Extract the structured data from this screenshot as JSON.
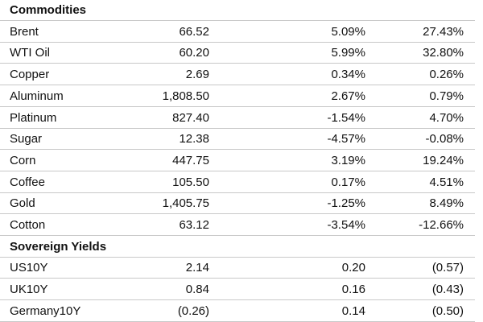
{
  "sections": [
    {
      "title": "Commodities",
      "rows": [
        [
          "Brent",
          "66.52",
          "5.09%",
          "27.43%"
        ],
        [
          "WTI Oil",
          "60.20",
          "5.99%",
          "32.80%"
        ],
        [
          "Copper",
          "2.69",
          "0.34%",
          "0.26%"
        ],
        [
          "Aluminum",
          "1,808.50",
          "2.67%",
          "0.79%"
        ],
        [
          "Platinum",
          "827.40",
          "-1.54%",
          "4.70%"
        ],
        [
          "Sugar",
          "12.38",
          "-4.57%",
          "-0.08%"
        ],
        [
          "Corn",
          "447.75",
          "3.19%",
          "19.24%"
        ],
        [
          "Coffee",
          "105.50",
          "0.17%",
          "4.51%"
        ],
        [
          "Gold",
          "1,405.75",
          "-1.25%",
          "8.49%"
        ],
        [
          "Cotton",
          "63.12",
          "-3.54%",
          "-12.66%"
        ]
      ]
    },
    {
      "title": "Sovereign Yields",
      "rows": [
        [
          "US10Y",
          "2.14",
          "0.20",
          "(0.57)"
        ],
        [
          "UK10Y",
          "0.84",
          "0.16",
          "(0.43)"
        ],
        [
          "Germany10Y",
          "(0.26)",
          "0.14",
          "(0.50)"
        ]
      ]
    }
  ]
}
